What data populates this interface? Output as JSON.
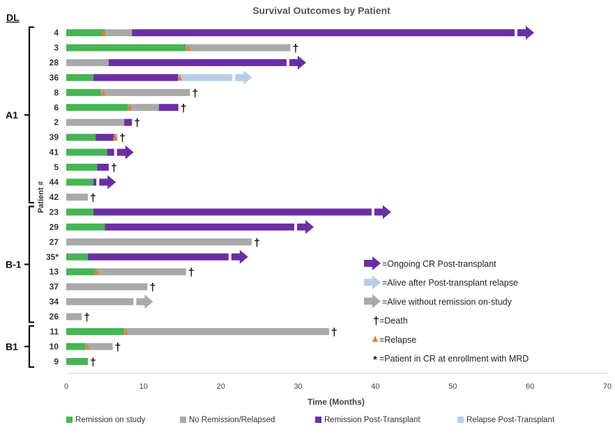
{
  "colors": {
    "remission_on_study": "#46b554",
    "no_remission": "#a9a9a9",
    "remission_post_transplant": "#6b2fa3",
    "relapse_post_transplant": "#b8cde8",
    "relapse_marker": "#e87e2a",
    "death_marker": "#111111"
  },
  "chart_data": {
    "type": "bar",
    "subtype": "swimmer-plot",
    "title": "Survival Outcomes by Patient",
    "xlabel": "Time (Months)",
    "ylabel": "Patient #",
    "xlim": [
      0,
      70
    ],
    "xticks": [
      0,
      10,
      20,
      30,
      40,
      50,
      60,
      70
    ],
    "grid": false,
    "group_header": "DL",
    "groups": [
      {
        "name": "A1",
        "patients": [
          "4",
          "3",
          "28",
          "36",
          "8",
          "6",
          "2",
          "39",
          "41",
          "5",
          "44",
          "42"
        ]
      },
      {
        "name": "B-1",
        "patients": [
          "23",
          "29",
          "27",
          "35*",
          "13",
          "37",
          "34",
          "26"
        ]
      },
      {
        "name": "B1",
        "patients": [
          "11",
          "10",
          "9"
        ]
      }
    ],
    "series": [
      {
        "key": "remission_on_study",
        "name": "Remission on study"
      },
      {
        "key": "no_remission",
        "name": "No Remission/Relapsed"
      },
      {
        "key": "remission_post_transplant",
        "name": "Remission Post-Transplant"
      },
      {
        "key": "relapse_post_transplant",
        "name": "Relapse Post-Transplant"
      }
    ],
    "patients": [
      {
        "id": "4",
        "segments": [
          {
            "s": "remission_on_study",
            "start": 0,
            "end": 5
          },
          {
            "s": "no_remission",
            "start": 5,
            "end": 8.5
          },
          {
            "s": "remission_post_transplant",
            "start": 8.5,
            "end": 58
          }
        ],
        "relapse": 4.8,
        "end": "ongoing_cr"
      },
      {
        "id": "3",
        "segments": [
          {
            "s": "remission_on_study",
            "start": 0,
            "end": 15.5
          },
          {
            "s": "no_remission",
            "start": 15.5,
            "end": 29
          }
        ],
        "relapse": 15.8,
        "end": "death"
      },
      {
        "id": "28",
        "segments": [
          {
            "s": "no_remission",
            "start": 0,
            "end": 5.5
          },
          {
            "s": "remission_post_transplant",
            "start": 5.5,
            "end": 28.5
          }
        ],
        "end": "ongoing_cr"
      },
      {
        "id": "36",
        "segments": [
          {
            "s": "remission_on_study",
            "start": 0,
            "end": 3.5
          },
          {
            "s": "remission_post_transplant",
            "start": 3.5,
            "end": 14.5
          },
          {
            "s": "relapse_post_transplant",
            "start": 14.5,
            "end": 21.5
          }
        ],
        "relapse": 14.7,
        "end": "alive_post_relapse"
      },
      {
        "id": "8",
        "segments": [
          {
            "s": "remission_on_study",
            "start": 0,
            "end": 4.5
          },
          {
            "s": "no_remission",
            "start": 4.5,
            "end": 16
          }
        ],
        "relapse": 4.8,
        "end": "death"
      },
      {
        "id": "6",
        "segments": [
          {
            "s": "remission_on_study",
            "start": 0,
            "end": 8
          },
          {
            "s": "no_remission",
            "start": 8,
            "end": 12
          },
          {
            "s": "remission_post_transplant",
            "start": 12,
            "end": 14.5
          }
        ],
        "relapse": 8.2,
        "end": "death"
      },
      {
        "id": "2",
        "segments": [
          {
            "s": "no_remission",
            "start": 0,
            "end": 7.5
          },
          {
            "s": "remission_post_transplant",
            "start": 7.5,
            "end": 8.5
          }
        ],
        "end": "death"
      },
      {
        "id": "39",
        "segments": [
          {
            "s": "remission_on_study",
            "start": 0,
            "end": 3.8
          },
          {
            "s": "remission_post_transplant",
            "start": 3.8,
            "end": 6.2
          },
          {
            "s": "no_remission",
            "start": 6.2,
            "end": 6.6
          }
        ],
        "relapse": 6.3,
        "end": "death"
      },
      {
        "id": "41",
        "segments": [
          {
            "s": "remission_on_study",
            "start": 0,
            "end": 5.3
          },
          {
            "s": "remission_post_transplant",
            "start": 5.3,
            "end": 6.2
          }
        ],
        "end": "ongoing_cr"
      },
      {
        "id": "5",
        "segments": [
          {
            "s": "remission_on_study",
            "start": 0,
            "end": 4
          },
          {
            "s": "remission_post_transplant",
            "start": 4,
            "end": 5.5
          }
        ],
        "end": "death"
      },
      {
        "id": "44",
        "segments": [
          {
            "s": "remission_on_study",
            "start": 0,
            "end": 3.5
          },
          {
            "s": "remission_post_transplant",
            "start": 3.5,
            "end": 3.9
          }
        ],
        "end": "ongoing_cr"
      },
      {
        "id": "42",
        "segments": [
          {
            "s": "no_remission",
            "start": 0,
            "end": 2.8
          }
        ],
        "end": "death"
      },
      {
        "id": "23",
        "segments": [
          {
            "s": "remission_on_study",
            "start": 0,
            "end": 3.5
          },
          {
            "s": "remission_post_transplant",
            "start": 3.5,
            "end": 39.5
          }
        ],
        "end": "ongoing_cr"
      },
      {
        "id": "29",
        "segments": [
          {
            "s": "remission_on_study",
            "start": 0,
            "end": 5
          },
          {
            "s": "remission_post_transplant",
            "start": 5,
            "end": 29.5
          }
        ],
        "end": "ongoing_cr"
      },
      {
        "id": "27",
        "segments": [
          {
            "s": "no_remission",
            "start": 0,
            "end": 24
          }
        ],
        "end": "death"
      },
      {
        "id": "35*",
        "segments": [
          {
            "s": "remission_on_study",
            "start": 0,
            "end": 2.8
          },
          {
            "s": "remission_post_transplant",
            "start": 2.8,
            "end": 21
          }
        ],
        "end": "ongoing_cr"
      },
      {
        "id": "13",
        "segments": [
          {
            "s": "remission_on_study",
            "start": 0,
            "end": 3.8
          },
          {
            "s": "no_remission",
            "start": 3.8,
            "end": 15.5
          }
        ],
        "relapse": 3.9,
        "end": "death"
      },
      {
        "id": "37",
        "segments": [
          {
            "s": "no_remission",
            "start": 0,
            "end": 10.5
          }
        ],
        "end": "death"
      },
      {
        "id": "34",
        "segments": [
          {
            "s": "no_remission",
            "start": 0,
            "end": 8.7
          }
        ],
        "end": "alive_no_remission"
      },
      {
        "id": "26",
        "segments": [
          {
            "s": "no_remission",
            "start": 0,
            "end": 2
          }
        ],
        "end": "death"
      },
      {
        "id": "11",
        "segments": [
          {
            "s": "remission_on_study",
            "start": 0,
            "end": 7.5
          },
          {
            "s": "no_remission",
            "start": 7.5,
            "end": 34
          }
        ],
        "relapse": 7.7,
        "end": "death"
      },
      {
        "id": "10",
        "segments": [
          {
            "s": "remission_on_study",
            "start": 0,
            "end": 2.5
          },
          {
            "s": "no_remission",
            "start": 2.5,
            "end": 6
          }
        ],
        "relapse": 2.7,
        "end": "death"
      },
      {
        "id": "9",
        "segments": [
          {
            "s": "remission_on_study",
            "start": 0,
            "end": 2.8
          }
        ],
        "end": "death"
      }
    ],
    "annotation_legend": [
      {
        "symbol": "arrow",
        "key": "remission_post_transplant",
        "label": "=Ongoing CR Post-transplant"
      },
      {
        "symbol": "arrow",
        "key": "relapse_post_transplant",
        "label": "=Alive after Post-transplant relapse"
      },
      {
        "symbol": "arrow",
        "key": "no_remission",
        "label": "=Alive without remission on-study"
      },
      {
        "symbol": "dagger",
        "glyph": "†",
        "label": "=Death"
      },
      {
        "symbol": "triangle",
        "key": "relapse_marker",
        "label": "=Relapse"
      },
      {
        "symbol": "asterisk",
        "glyph": "*",
        "label": "=Patient in CR at enrollment with MRD"
      }
    ],
    "legend_placement": "bottom"
  }
}
